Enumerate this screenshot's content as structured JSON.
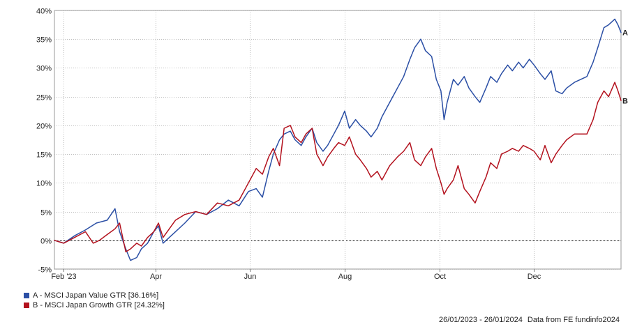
{
  "chart_data": {
    "type": "line",
    "title": "",
    "xlabel": "",
    "ylabel": "",
    "y_unit": "%",
    "ylim": [
      -5,
      40
    ],
    "y_ticks": [
      -5,
      0,
      5,
      10,
      15,
      20,
      25,
      30,
      35,
      40
    ],
    "y_tick_labels": [
      "-5%",
      "0%",
      "5%",
      "10%",
      "15%",
      "20%",
      "25%",
      "30%",
      "35%",
      "40%"
    ],
    "x_range": [
      "2023-01-26",
      "2024-01-26"
    ],
    "x_ticks": [
      {
        "date": "2023-02-01",
        "label": "Feb '23"
      },
      {
        "date": "2023-04-01",
        "label": "Apr"
      },
      {
        "date": "2023-06-01",
        "label": "Jun"
      },
      {
        "date": "2023-08-01",
        "label": "Aug"
      },
      {
        "date": "2023-10-01",
        "label": "Oct"
      },
      {
        "date": "2023-12-01",
        "label": "Dec"
      }
    ],
    "grid": true,
    "zero_line": true,
    "series": [
      {
        "name": "A - MSCI Japan Value GTR [36.16%]",
        "end_label": "A",
        "color": "#2b4fa5",
        "points": [
          [
            "2023-01-26",
            0.0
          ],
          [
            "2023-02-01",
            -0.5
          ],
          [
            "2023-02-08",
            0.8
          ],
          [
            "2023-02-15",
            1.8
          ],
          [
            "2023-02-22",
            3.0
          ],
          [
            "2023-03-01",
            3.5
          ],
          [
            "2023-03-06",
            5.5
          ],
          [
            "2023-03-09",
            1.5
          ],
          [
            "2023-03-13",
            -1.5
          ],
          [
            "2023-03-16",
            -3.5
          ],
          [
            "2023-03-20",
            -3.0
          ],
          [
            "2023-03-23",
            -1.5
          ],
          [
            "2023-03-27",
            -0.5
          ],
          [
            "2023-03-31",
            1.5
          ],
          [
            "2023-04-03",
            2.5
          ],
          [
            "2023-04-06",
            -0.5
          ],
          [
            "2023-04-10",
            0.5
          ],
          [
            "2023-04-14",
            1.5
          ],
          [
            "2023-04-20",
            3.0
          ],
          [
            "2023-04-27",
            5.0
          ],
          [
            "2023-05-04",
            4.5
          ],
          [
            "2023-05-11",
            5.5
          ],
          [
            "2023-05-18",
            7.0
          ],
          [
            "2023-05-25",
            6.0
          ],
          [
            "2023-05-31",
            8.5
          ],
          [
            "2023-06-05",
            9.0
          ],
          [
            "2023-06-09",
            7.5
          ],
          [
            "2023-06-13",
            12.0
          ],
          [
            "2023-06-16",
            15.0
          ],
          [
            "2023-06-20",
            17.5
          ],
          [
            "2023-06-23",
            18.5
          ],
          [
            "2023-06-27",
            19.0
          ],
          [
            "2023-06-30",
            17.5
          ],
          [
            "2023-07-04",
            16.5
          ],
          [
            "2023-07-07",
            18.0
          ],
          [
            "2023-07-11",
            19.5
          ],
          [
            "2023-07-14",
            17.0
          ],
          [
            "2023-07-18",
            15.5
          ],
          [
            "2023-07-21",
            16.5
          ],
          [
            "2023-07-25",
            18.5
          ],
          [
            "2023-07-28",
            20.0
          ],
          [
            "2023-08-01",
            22.5
          ],
          [
            "2023-08-04",
            19.5
          ],
          [
            "2023-08-08",
            21.0
          ],
          [
            "2023-08-11",
            20.0
          ],
          [
            "2023-08-15",
            19.0
          ],
          [
            "2023-08-18",
            18.0
          ],
          [
            "2023-08-22",
            19.5
          ],
          [
            "2023-08-25",
            21.5
          ],
          [
            "2023-08-30",
            24.0
          ],
          [
            "2023-09-04",
            26.5
          ],
          [
            "2023-09-08",
            28.5
          ],
          [
            "2023-09-12",
            31.5
          ],
          [
            "2023-09-15",
            33.5
          ],
          [
            "2023-09-19",
            35.0
          ],
          [
            "2023-09-22",
            33.0
          ],
          [
            "2023-09-26",
            32.0
          ],
          [
            "2023-09-29",
            28.0
          ],
          [
            "2023-10-02",
            26.0
          ],
          [
            "2023-10-04",
            21.0
          ],
          [
            "2023-10-06",
            24.0
          ],
          [
            "2023-10-10",
            28.0
          ],
          [
            "2023-10-13",
            27.0
          ],
          [
            "2023-10-17",
            28.5
          ],
          [
            "2023-10-20",
            26.5
          ],
          [
            "2023-10-24",
            25.0
          ],
          [
            "2023-10-27",
            24.0
          ],
          [
            "2023-10-31",
            26.5
          ],
          [
            "2023-11-03",
            28.5
          ],
          [
            "2023-11-07",
            27.5
          ],
          [
            "2023-11-10",
            29.0
          ],
          [
            "2023-11-14",
            30.5
          ],
          [
            "2023-11-17",
            29.5
          ],
          [
            "2023-11-21",
            31.0
          ],
          [
            "2023-11-24",
            30.0
          ],
          [
            "2023-11-28",
            31.5
          ],
          [
            "2023-12-01",
            30.5
          ],
          [
            "2023-12-05",
            29.0
          ],
          [
            "2023-12-08",
            28.0
          ],
          [
            "2023-12-12",
            29.5
          ],
          [
            "2023-12-15",
            26.0
          ],
          [
            "2023-12-19",
            25.5
          ],
          [
            "2023-12-22",
            26.5
          ],
          [
            "2023-12-27",
            27.5
          ],
          [
            "2024-01-04",
            28.5
          ],
          [
            "2024-01-08",
            31.0
          ],
          [
            "2024-01-11",
            33.5
          ],
          [
            "2024-01-15",
            37.0
          ],
          [
            "2024-01-18",
            37.5
          ],
          [
            "2024-01-22",
            38.5
          ],
          [
            "2024-01-24",
            37.5
          ],
          [
            "2024-01-26",
            36.16
          ]
        ]
      },
      {
        "name": "B - MSCI Japan Growth GTR [24.32%]",
        "end_label": "B",
        "color": "#b3121e",
        "points": [
          [
            "2023-01-26",
            0.0
          ],
          [
            "2023-02-01",
            -0.5
          ],
          [
            "2023-02-08",
            0.5
          ],
          [
            "2023-02-15",
            1.5
          ],
          [
            "2023-02-20",
            -0.5
          ],
          [
            "2023-02-24",
            0.0
          ],
          [
            "2023-03-01",
            1.0
          ],
          [
            "2023-03-06",
            2.0
          ],
          [
            "2023-03-09",
            3.0
          ],
          [
            "2023-03-13",
            -2.0
          ],
          [
            "2023-03-16",
            -1.5
          ],
          [
            "2023-03-20",
            -0.5
          ],
          [
            "2023-03-23",
            -1.0
          ],
          [
            "2023-03-27",
            0.5
          ],
          [
            "2023-03-31",
            1.5
          ],
          [
            "2023-04-03",
            3.0
          ],
          [
            "2023-04-06",
            0.5
          ],
          [
            "2023-04-10",
            2.0
          ],
          [
            "2023-04-14",
            3.5
          ],
          [
            "2023-04-20",
            4.5
          ],
          [
            "2023-04-27",
            5.0
          ],
          [
            "2023-05-04",
            4.5
          ],
          [
            "2023-05-11",
            6.5
          ],
          [
            "2023-05-18",
            6.0
          ],
          [
            "2023-05-25",
            7.0
          ],
          [
            "2023-05-31",
            10.0
          ],
          [
            "2023-06-05",
            12.5
          ],
          [
            "2023-06-09",
            11.5
          ],
          [
            "2023-06-13",
            14.5
          ],
          [
            "2023-06-16",
            16.0
          ],
          [
            "2023-06-20",
            13.0
          ],
          [
            "2023-06-23",
            19.5
          ],
          [
            "2023-06-27",
            20.0
          ],
          [
            "2023-06-30",
            18.0
          ],
          [
            "2023-07-04",
            17.0
          ],
          [
            "2023-07-07",
            18.5
          ],
          [
            "2023-07-11",
            19.5
          ],
          [
            "2023-07-14",
            15.0
          ],
          [
            "2023-07-18",
            13.0
          ],
          [
            "2023-07-21",
            14.5
          ],
          [
            "2023-07-25",
            16.0
          ],
          [
            "2023-07-28",
            17.0
          ],
          [
            "2023-08-01",
            16.5
          ],
          [
            "2023-08-04",
            18.0
          ],
          [
            "2023-08-08",
            15.0
          ],
          [
            "2023-08-11",
            14.0
          ],
          [
            "2023-08-15",
            12.5
          ],
          [
            "2023-08-18",
            11.0
          ],
          [
            "2023-08-22",
            12.0
          ],
          [
            "2023-08-25",
            10.5
          ],
          [
            "2023-08-30",
            13.0
          ],
          [
            "2023-09-04",
            14.5
          ],
          [
            "2023-09-08",
            15.5
          ],
          [
            "2023-09-12",
            17.0
          ],
          [
            "2023-09-15",
            14.0
          ],
          [
            "2023-09-19",
            13.0
          ],
          [
            "2023-09-22",
            14.5
          ],
          [
            "2023-09-26",
            16.0
          ],
          [
            "2023-09-29",
            12.5
          ],
          [
            "2023-10-02",
            10.0
          ],
          [
            "2023-10-04",
            8.0
          ],
          [
            "2023-10-06",
            9.0
          ],
          [
            "2023-10-10",
            10.5
          ],
          [
            "2023-10-13",
            13.0
          ],
          [
            "2023-10-17",
            9.0
          ],
          [
            "2023-10-20",
            8.0
          ],
          [
            "2023-10-24",
            6.5
          ],
          [
            "2023-10-27",
            8.5
          ],
          [
            "2023-10-31",
            11.0
          ],
          [
            "2023-11-03",
            13.5
          ],
          [
            "2023-11-07",
            12.5
          ],
          [
            "2023-11-10",
            15.0
          ],
          [
            "2023-11-14",
            15.5
          ],
          [
            "2023-11-17",
            16.0
          ],
          [
            "2023-11-21",
            15.5
          ],
          [
            "2023-11-24",
            16.5
          ],
          [
            "2023-11-28",
            16.0
          ],
          [
            "2023-12-01",
            15.5
          ],
          [
            "2023-12-05",
            14.0
          ],
          [
            "2023-12-08",
            16.5
          ],
          [
            "2023-12-12",
            13.5
          ],
          [
            "2023-12-15",
            15.0
          ],
          [
            "2023-12-19",
            16.5
          ],
          [
            "2023-12-22",
            17.5
          ],
          [
            "2023-12-27",
            18.5
          ],
          [
            "2024-01-04",
            18.5
          ],
          [
            "2024-01-08",
            21.0
          ],
          [
            "2024-01-11",
            24.0
          ],
          [
            "2024-01-15",
            26.0
          ],
          [
            "2024-01-18",
            25.0
          ],
          [
            "2024-01-22",
            27.5
          ],
          [
            "2024-01-24",
            26.0
          ],
          [
            "2024-01-26",
            24.32
          ]
        ]
      }
    ]
  },
  "legend": [
    {
      "label": "A - MSCI Japan Value GTR [36.16%]",
      "color": "#2b4fa5"
    },
    {
      "label": "B - MSCI Japan Growth GTR [24.32%]",
      "color": "#b3121e"
    }
  ],
  "footer": {
    "date_range": "26/01/2023 - 26/01/2024",
    "source": "Data from FE fundinfo2024"
  }
}
